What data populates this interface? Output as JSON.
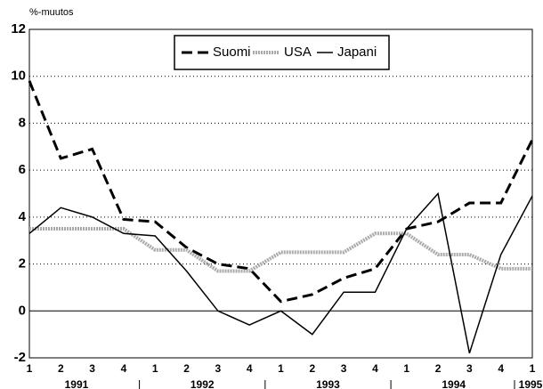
{
  "chart_data": {
    "type": "line",
    "y_label": "%-muutos",
    "categories": [
      "1",
      "2",
      "3",
      "4",
      "1",
      "2",
      "3",
      "4",
      "1",
      "2",
      "3",
      "4",
      "1",
      "2",
      "3",
      "4",
      "1"
    ],
    "years": [
      "1991",
      "1992",
      "1993",
      "1994",
      "1995"
    ],
    "ylim": [
      -2,
      12
    ],
    "yticks": [
      -2,
      0,
      2,
      4,
      6,
      8,
      10,
      12
    ],
    "grid": true,
    "legend": "top",
    "series": [
      {
        "name": "Suomi",
        "color": "#000000",
        "line_style": "dashed",
        "values": [
          9.8,
          6.5,
          6.9,
          3.9,
          3.8,
          2.7,
          2.0,
          1.8,
          0.4,
          0.7,
          1.4,
          1.8,
          3.5,
          3.8,
          4.6,
          4.6,
          7.3
        ]
      },
      {
        "name": "USA",
        "color": "#aaaaaa",
        "line_style": "hatched",
        "values": [
          3.5,
          3.5,
          3.5,
          3.5,
          2.6,
          2.6,
          1.7,
          1.7,
          2.5,
          2.5,
          2.5,
          3.3,
          3.3,
          2.4,
          2.4,
          1.8,
          1.8
        ]
      },
      {
        "name": "Japani",
        "color": "#000000",
        "line_style": "solid",
        "values": [
          3.3,
          4.4,
          4.0,
          3.3,
          3.2,
          1.7,
          0.0,
          -0.6,
          0.0,
          -1.0,
          0.8,
          0.8,
          3.5,
          5.0,
          -1.8,
          2.4,
          4.9
        ]
      }
    ]
  }
}
